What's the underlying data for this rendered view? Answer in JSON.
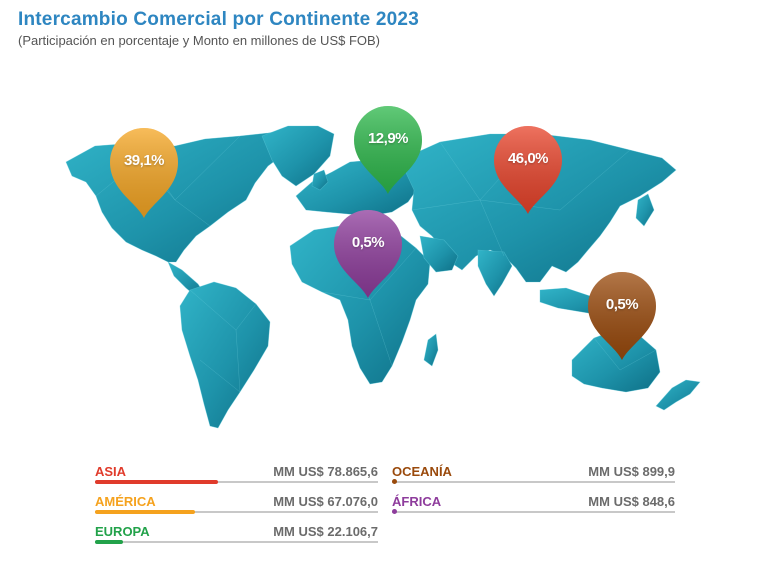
{
  "header": {
    "title": "Intercambio Comercial por Continente 2023",
    "subtitle": "(Participación en porcentaje y Monto en millones de US$ FOB)"
  },
  "pins": [
    {
      "id": "america",
      "label": "39,1%",
      "color": "#F5A623",
      "icon": "map-pin-icon"
    },
    {
      "id": "europa",
      "label": "12,9%",
      "color": "#2DB84B",
      "icon": "map-pin-icon"
    },
    {
      "id": "asia",
      "label": "46,0%",
      "color": "#E8432A",
      "icon": "map-pin-icon"
    },
    {
      "id": "africa",
      "label": "0,5%",
      "color": "#8E3C9C",
      "icon": "map-pin-icon"
    },
    {
      "id": "oceania",
      "label": "0,5%",
      "color": "#9A4A0C",
      "icon": "map-pin-icon"
    }
  ],
  "legend": [
    {
      "id": "asia",
      "name": "ASIA",
      "value": "MM US$ 78.865,6",
      "color": "#E03B2B",
      "share": 0.46
    },
    {
      "id": "america",
      "name": "AMÉRICA",
      "value": "MM US$ 67.076,0",
      "color": "#F5A21E",
      "share": 0.391
    },
    {
      "id": "europa",
      "name": "EUROPA",
      "value": "MM US$ 22.106,7",
      "color": "#22A24A",
      "share": 0.129
    },
    {
      "id": "oceania",
      "name": "OCEANÍA",
      "value": "MM US$ 899,9",
      "color": "#9A4A0C",
      "share": 0.005
    },
    {
      "id": "africa",
      "name": "ÁFRICA",
      "value": "MM US$ 848,6",
      "color": "#8E3C9C",
      "share": 0.005
    }
  ]
}
